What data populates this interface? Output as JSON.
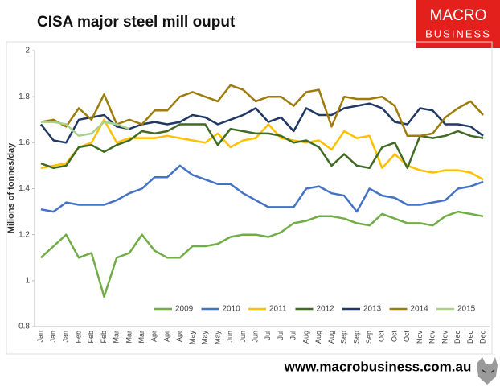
{
  "chart_data": {
    "type": "line",
    "title": "CISA major steel mill ouput",
    "ylabel": "Milions of tonnes/day",
    "logo": [
      "MACRO",
      "BUSINESS"
    ],
    "footer": "www.macrobusiness.com.au",
    "categories": [
      "Jan",
      "Jan",
      "Jan",
      "Feb",
      "Feb",
      "Feb",
      "Mar",
      "Mar",
      "Mar",
      "Apr",
      "Apr",
      "Apr",
      "May",
      "May",
      "May",
      "Jun",
      "Jun",
      "Jun",
      "Jul",
      "Jul",
      "Jul",
      "Aug",
      "Aug",
      "Aug",
      "Sep",
      "Sep",
      "Sep",
      "Oct",
      "Oct",
      "Oct",
      "Nov",
      "Nov",
      "Nov",
      "Dec",
      "Dec",
      "Dec"
    ],
    "ylim": [
      0.8,
      2
    ],
    "yticks": [
      0.8,
      1,
      1.2,
      1.4,
      1.6,
      1.8,
      2
    ],
    "grid": false,
    "legend": "bottom",
    "series": [
      {
        "name": "2009",
        "color": "#70ad47",
        "values": [
          1.1,
          1.15,
          1.2,
          1.1,
          1.12,
          0.93,
          1.1,
          1.12,
          1.2,
          1.13,
          1.1,
          1.1,
          1.15,
          1.15,
          1.16,
          1.19,
          1.2,
          1.2,
          1.19,
          1.21,
          1.25,
          1.26,
          1.28,
          1.28,
          1.27,
          1.25,
          1.24,
          1.29,
          1.27,
          1.25,
          1.25,
          1.24,
          1.28,
          1.3,
          1.29,
          1.28
        ]
      },
      {
        "name": "2010",
        "color": "#4472c4",
        "values": [
          1.31,
          1.3,
          1.34,
          1.33,
          1.33,
          1.33,
          1.35,
          1.38,
          1.4,
          1.45,
          1.45,
          1.5,
          1.46,
          1.44,
          1.42,
          1.42,
          1.38,
          1.35,
          1.32,
          1.32,
          1.32,
          1.4,
          1.41,
          1.38,
          1.37,
          1.3,
          1.4,
          1.37,
          1.36,
          1.33,
          1.33,
          1.34,
          1.35,
          1.4,
          1.41,
          1.43
        ]
      },
      {
        "name": "2011",
        "color": "#ffc000",
        "values": [
          1.49,
          1.5,
          1.51,
          1.58,
          1.6,
          1.7,
          1.6,
          1.62,
          1.62,
          1.62,
          1.63,
          1.62,
          1.61,
          1.6,
          1.64,
          1.58,
          1.61,
          1.62,
          1.68,
          1.62,
          1.61,
          1.6,
          1.61,
          1.57,
          1.65,
          1.62,
          1.63,
          1.49,
          1.55,
          1.5,
          1.48,
          1.47,
          1.48,
          1.48,
          1.47,
          1.44
        ]
      },
      {
        "name": "2012",
        "color": "#3f6b25",
        "values": [
          1.51,
          1.49,
          1.5,
          1.58,
          1.59,
          1.56,
          1.59,
          1.61,
          1.65,
          1.64,
          1.65,
          1.68,
          1.68,
          1.68,
          1.59,
          1.66,
          1.65,
          1.64,
          1.64,
          1.63,
          1.6,
          1.61,
          1.58,
          1.5,
          1.55,
          1.5,
          1.49,
          1.58,
          1.6,
          1.49,
          1.63,
          1.62,
          1.63,
          1.65,
          1.63,
          1.62
        ]
      },
      {
        "name": "2013",
        "color": "#203864",
        "values": [
          1.68,
          1.61,
          1.6,
          1.7,
          1.71,
          1.72,
          1.67,
          1.66,
          1.68,
          1.69,
          1.68,
          1.69,
          1.72,
          1.71,
          1.68,
          1.7,
          1.72,
          1.75,
          1.69,
          1.71,
          1.65,
          1.75,
          1.72,
          1.72,
          1.75,
          1.76,
          1.77,
          1.75,
          1.69,
          1.68,
          1.75,
          1.74,
          1.68,
          1.68,
          1.67,
          1.63
        ]
      },
      {
        "name": "2014",
        "color": "#9e7c0c",
        "values": [
          1.69,
          1.7,
          1.67,
          1.75,
          1.7,
          1.81,
          1.68,
          1.7,
          1.68,
          1.74,
          1.74,
          1.8,
          1.82,
          1.8,
          1.78,
          1.85,
          1.83,
          1.78,
          1.8,
          1.8,
          1.76,
          1.82,
          1.83,
          1.67,
          1.8,
          1.79,
          1.79,
          1.8,
          1.76,
          1.63,
          1.63,
          1.64,
          1.71,
          1.75,
          1.78,
          1.72
        ]
      },
      {
        "name": "2015",
        "color": "#a9d18e",
        "values": [
          1.69,
          1.69,
          1.68,
          1.63,
          1.64,
          1.69,
          1.68,
          1.66,
          null,
          null,
          null,
          null,
          null,
          null,
          null,
          null,
          null,
          null,
          null,
          null,
          null,
          null,
          null,
          null,
          null,
          null,
          null,
          null,
          null,
          null,
          null,
          null,
          null,
          null,
          null,
          null
        ]
      }
    ]
  }
}
